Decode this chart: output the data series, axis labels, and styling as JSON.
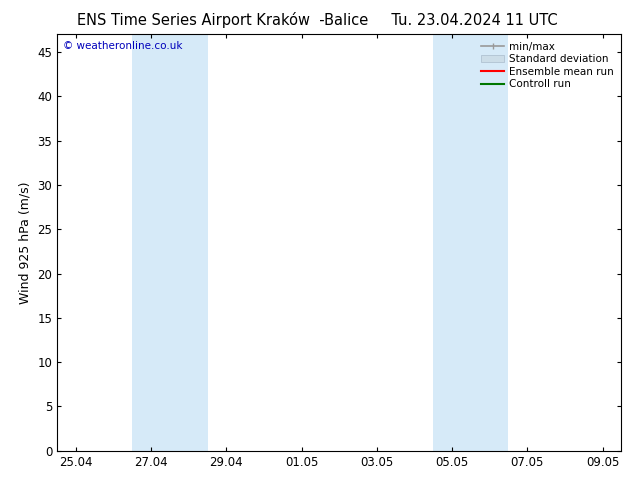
{
  "title_left": "ENS Time Series Airport Kraków  -Balice",
  "title_right": "Tu. 23.04.2024 11 UTC",
  "ylabel": "Wind 925 hPa (m/s)",
  "watermark": "© weatheronline.co.uk",
  "background_color": "#ffffff",
  "plot_bg_color": "#ffffff",
  "ylim": [
    0,
    47
  ],
  "yticks": [
    0,
    5,
    10,
    15,
    20,
    25,
    30,
    35,
    40,
    45
  ],
  "xtick_labels": [
    "25.04",
    "27.04",
    "29.04",
    "01.05",
    "03.05",
    "05.05",
    "07.05",
    "09.05"
  ],
  "xtick_positions": [
    0,
    2,
    4,
    6,
    8,
    10,
    12,
    14
  ],
  "xlim": [
    -0.5,
    14.5
  ],
  "shaded_bands": [
    {
      "x_start": 1.5,
      "x_end": 3.5,
      "color": "#d6eaf8"
    },
    {
      "x_start": 9.5,
      "x_end": 11.5,
      "color": "#d6eaf8"
    }
  ],
  "legend_items": [
    {
      "label": "min/max",
      "color": "#999999",
      "lw": 1.2,
      "style": "minmax"
    },
    {
      "label": "Standard deviation",
      "color": "#ccdde8",
      "lw": 6,
      "style": "rect"
    },
    {
      "label": "Ensemble mean run",
      "color": "#ff0000",
      "lw": 1.5,
      "style": "line"
    },
    {
      "label": "Controll run",
      "color": "#007700",
      "lw": 1.5,
      "style": "line"
    }
  ],
  "title_fontsize": 10.5,
  "axis_label_fontsize": 9,
  "tick_fontsize": 8.5,
  "legend_fontsize": 7.5,
  "watermark_color": "#0000bb",
  "border_color": "#000000"
}
